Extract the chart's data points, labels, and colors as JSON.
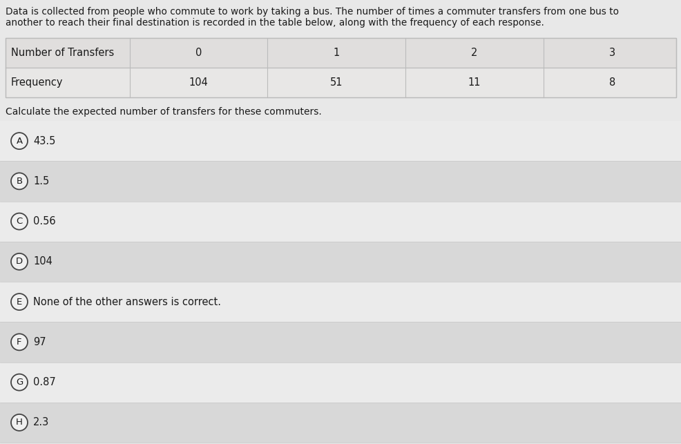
{
  "description_line1": "Data is collected from people who commute to work by taking a bus. The number of times a commuter transfers from one bus to",
  "description_line2": "another to reach their final destination is recorded in the table below, along with the frequency of each response.",
  "table_header": [
    "Number of Transfers",
    "0",
    "1",
    "2",
    "3"
  ],
  "table_row": [
    "Frequency",
    "104",
    "51",
    "11",
    "8"
  ],
  "question_text": "Calculate the expected number of transfers for these commuters.",
  "options": [
    {
      "letter": "A",
      "text": "43.5"
    },
    {
      "letter": "B",
      "text": "1.5"
    },
    {
      "letter": "C",
      "text": "0.56"
    },
    {
      "letter": "D",
      "text": "104"
    },
    {
      "letter": "E",
      "text": "None of the other answers is correct."
    },
    {
      "letter": "F",
      "text": "97"
    },
    {
      "letter": "G",
      "text": "0.87"
    },
    {
      "letter": "H",
      "text": "2.3"
    }
  ],
  "bg_color": "#e8e8e8",
  "table_header_bg": "#e0dedd",
  "table_row_bg": "#e8e7e6",
  "table_border_color": "#bbbbbb",
  "option_bg_light": "#ebebeb",
  "option_bg_dark": "#d8d8d8",
  "option_sep_color": "#c8c8c8",
  "text_color": "#1a1a1a",
  "circle_fill": "#f0f0f0",
  "circle_edge": "#444444",
  "font_size_desc": 9.8,
  "font_size_table": 10.5,
  "font_size_question": 10.0,
  "font_size_option": 10.5,
  "font_size_letter": 9.5
}
